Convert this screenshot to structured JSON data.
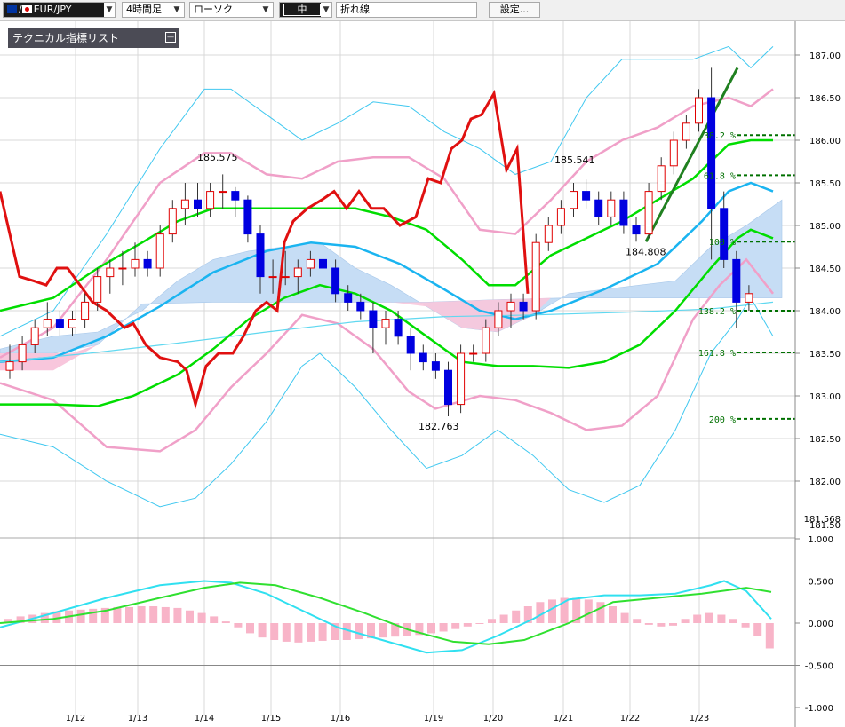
{
  "toolbar": {
    "pair": "EUR/JPY",
    "timeframe": "4時間足",
    "chart_type": "ローソク",
    "line_width": "中",
    "line_style": "折れ線",
    "settings_label": "設定..."
  },
  "indicator_list": {
    "label": "テクニカル指標リスト"
  },
  "colors": {
    "up_candle": "#e00000",
    "down_candle": "#0000e0",
    "bb_outer": "#40c8f0",
    "bb_inner": "#f0a0c8",
    "ma_short": "#00dd00",
    "ma_mid": "#1ab4f0",
    "lagging": "#e01010",
    "cloud_bull": "#c6ddf5",
    "cloud_bear": "#f8c6dc",
    "fibo": "#007000",
    "trendline": "#208020"
  },
  "chart_data": {
    "type": "candlestick",
    "price_axis": {
      "ticks": [
        "187.00",
        "186.50",
        "186.00",
        "185.50",
        "185.00",
        "184.50",
        "184.00",
        "183.50",
        "183.00",
        "182.50",
        "182.00"
      ],
      "ymin_label": "181.568",
      "ymin_label2": "181.50",
      "range": [
        181.5,
        187.2
      ]
    },
    "x_axis": {
      "labels": [
        "1/12",
        "1/13",
        "1/14",
        "1/15",
        "1/16",
        "1/19",
        "1/20",
        "1/21",
        "1/22",
        "1/23"
      ]
    },
    "annotations": [
      {
        "text": "185.575",
        "price": 185.575
      },
      {
        "text": "185.541",
        "price": 185.541
      },
      {
        "text": "184.808",
        "price": 184.808
      },
      {
        "text": "182.763",
        "price": 182.763
      }
    ],
    "fibonacci": [
      {
        "label": "38.2 %",
        "price": 186.06
      },
      {
        "label": "61.8 %",
        "price": 185.59
      },
      {
        "label": "100 %",
        "price": 184.81
      },
      {
        "label": "138.2 %",
        "price": 184.0
      },
      {
        "label": "161.8 %",
        "price": 183.51
      },
      {
        "label": "200 %",
        "price": 182.73
      }
    ],
    "candles": [
      [
        183.3,
        183.6,
        183.2,
        183.4
      ],
      [
        183.4,
        183.7,
        183.3,
        183.6
      ],
      [
        183.6,
        183.9,
        183.5,
        183.8
      ],
      [
        183.8,
        184.1,
        183.7,
        183.9
      ],
      [
        183.9,
        184.0,
        183.7,
        183.8
      ],
      [
        183.8,
        184.0,
        183.7,
        183.9
      ],
      [
        183.9,
        184.2,
        183.8,
        184.1
      ],
      [
        184.1,
        184.5,
        184.0,
        184.4
      ],
      [
        184.4,
        184.6,
        184.2,
        184.5
      ],
      [
        184.5,
        184.7,
        184.3,
        184.5
      ],
      [
        184.5,
        184.8,
        184.4,
        184.6
      ],
      [
        184.6,
        184.7,
        184.4,
        184.5
      ],
      [
        184.5,
        185.0,
        184.4,
        184.9
      ],
      [
        184.9,
        185.3,
        184.8,
        185.2
      ],
      [
        185.2,
        185.5,
        185.0,
        185.3
      ],
      [
        185.3,
        185.5,
        185.1,
        185.2
      ],
      [
        185.2,
        185.5,
        185.1,
        185.4
      ],
      [
        185.4,
        185.6,
        185.2,
        185.4
      ],
      [
        185.4,
        185.45,
        185.1,
        185.3
      ],
      [
        185.3,
        185.35,
        184.8,
        184.9
      ],
      [
        184.9,
        185.0,
        184.2,
        184.4
      ],
      [
        184.4,
        184.6,
        184.2,
        184.4
      ],
      [
        184.4,
        184.7,
        184.3,
        184.4
      ],
      [
        184.4,
        184.6,
        184.2,
        184.5
      ],
      [
        184.5,
        184.7,
        184.4,
        184.6
      ],
      [
        184.6,
        184.7,
        184.4,
        184.5
      ],
      [
        184.5,
        184.6,
        184.1,
        184.2
      ],
      [
        184.2,
        184.3,
        184.0,
        184.1
      ],
      [
        184.1,
        184.2,
        183.9,
        184.0
      ],
      [
        184.0,
        184.1,
        183.5,
        183.8
      ],
      [
        183.8,
        184.0,
        183.6,
        183.9
      ],
      [
        183.9,
        184.0,
        183.6,
        183.7
      ],
      [
        183.7,
        183.8,
        183.3,
        183.5
      ],
      [
        183.5,
        183.6,
        183.3,
        183.4
      ],
      [
        183.4,
        183.5,
        183.2,
        183.3
      ],
      [
        183.3,
        183.4,
        182.76,
        182.9
      ],
      [
        182.9,
        183.6,
        182.8,
        183.5
      ],
      [
        183.5,
        183.6,
        183.4,
        183.5
      ],
      [
        183.5,
        183.9,
        183.4,
        183.8
      ],
      [
        183.8,
        184.1,
        183.7,
        184.0
      ],
      [
        184.0,
        184.2,
        183.8,
        184.1
      ],
      [
        184.1,
        184.2,
        183.9,
        184.0
      ],
      [
        184.0,
        184.9,
        183.9,
        184.8
      ],
      [
        184.8,
        185.1,
        184.7,
        185.0
      ],
      [
        185.0,
        185.3,
        184.9,
        185.2
      ],
      [
        185.2,
        185.5,
        185.1,
        185.4
      ],
      [
        185.4,
        185.54,
        185.2,
        185.3
      ],
      [
        185.3,
        185.4,
        185.0,
        185.1
      ],
      [
        185.1,
        185.4,
        185.0,
        185.3
      ],
      [
        185.3,
        185.4,
        184.9,
        185.0
      ],
      [
        185.0,
        185.1,
        184.81,
        184.9
      ],
      [
        184.9,
        185.5,
        184.85,
        185.4
      ],
      [
        185.4,
        185.8,
        185.3,
        185.7
      ],
      [
        185.7,
        186.1,
        185.6,
        186.0
      ],
      [
        186.0,
        186.3,
        185.9,
        186.2
      ],
      [
        186.2,
        186.6,
        186.1,
        186.5
      ],
      [
        186.5,
        186.85,
        184.6,
        185.2
      ],
      [
        185.2,
        185.4,
        184.5,
        184.6
      ],
      [
        184.6,
        184.7,
        183.8,
        184.1
      ],
      [
        184.1,
        184.3,
        184.0,
        184.2
      ]
    ],
    "oscillator": {
      "ticks": [
        "1.000",
        "0.500",
        "0.000",
        "-0.500",
        "-1.000"
      ],
      "range": [
        -1.0,
        1.0
      ]
    }
  }
}
